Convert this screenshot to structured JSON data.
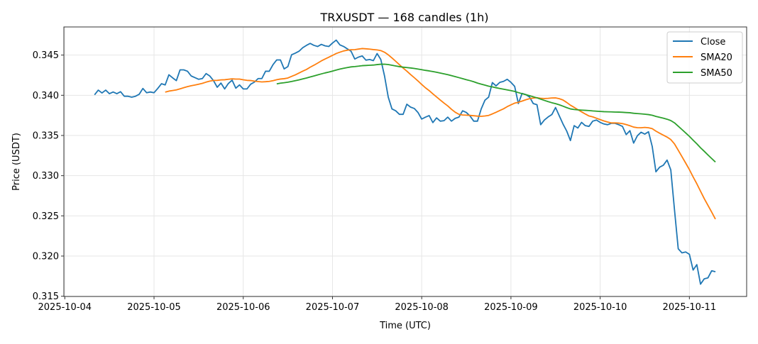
{
  "chart_data": {
    "type": "line",
    "title": "TRXUSDT — 168 candles (1h)",
    "xlabel": "Time (UTC)",
    "ylabel": "Price (USDT)",
    "x_start": "2025-10-04 08:00",
    "x_interval_hours": 1,
    "x_origin": "2025-10-04 00:00",
    "xlim_hours_from_origin": [
      -0.25,
      183.4
    ],
    "ylim": [
      0.31497,
      0.3485
    ],
    "grid": true,
    "legend_position": "top-right",
    "x_ticks": [
      "2025-10-04",
      "2025-10-05",
      "2025-10-06",
      "2025-10-07",
      "2025-10-08",
      "2025-10-09",
      "2025-10-10",
      "2025-10-11"
    ],
    "y_ticks": [
      "0.315",
      "0.320",
      "0.325",
      "0.330",
      "0.335",
      "0.340",
      "0.345"
    ],
    "series": [
      {
        "name": "Close",
        "color": "#1f77b4",
        "values": [
          0.34006,
          0.34064,
          0.34029,
          0.34064,
          0.3402,
          0.34041,
          0.3402,
          0.34044,
          0.33988,
          0.33988,
          0.33977,
          0.33988,
          0.34012,
          0.34085,
          0.34032,
          0.34041,
          0.34032,
          0.34085,
          0.34144,
          0.34129,
          0.34255,
          0.34217,
          0.34182,
          0.34316,
          0.34316,
          0.34299,
          0.3424,
          0.3422,
          0.34199,
          0.34208,
          0.3427,
          0.3424,
          0.34182,
          0.341,
          0.34152,
          0.34079,
          0.34147,
          0.34188,
          0.34088,
          0.34129,
          0.34079,
          0.34079,
          0.34138,
          0.34164,
          0.34208,
          0.34208,
          0.34299,
          0.34299,
          0.34381,
          0.3444,
          0.3444,
          0.34328,
          0.34357,
          0.34504,
          0.34524,
          0.34548,
          0.34592,
          0.34621,
          0.34645,
          0.34621,
          0.34607,
          0.34633,
          0.34615,
          0.34607,
          0.3465,
          0.34686,
          0.34627,
          0.34607,
          0.34577,
          0.34548,
          0.34451,
          0.34475,
          0.34489,
          0.34437,
          0.34445,
          0.34431,
          0.34519,
          0.34445,
          0.3424,
          0.33977,
          0.3383,
          0.33807,
          0.33763,
          0.33763,
          0.33889,
          0.33853,
          0.33836,
          0.33786,
          0.33704,
          0.33728,
          0.33748,
          0.3366,
          0.33719,
          0.33678,
          0.33684,
          0.33728,
          0.33678,
          0.33713,
          0.33728,
          0.33807,
          0.33786,
          0.33742,
          0.33678,
          0.33678,
          0.3383,
          0.33938,
          0.33977,
          0.34158,
          0.34117,
          0.34161,
          0.34173,
          0.34199,
          0.34161,
          0.34111,
          0.33897,
          0.34023,
          0.34009,
          0.33979,
          0.33897,
          0.33883,
          0.33634,
          0.33692,
          0.3373,
          0.3376,
          0.33848,
          0.33745,
          0.33643,
          0.33555,
          0.33437,
          0.33622,
          0.33593,
          0.33663,
          0.33622,
          0.33613,
          0.33678,
          0.33692,
          0.33663,
          0.33643,
          0.33634,
          0.33651,
          0.33651,
          0.33634,
          0.33613,
          0.33511,
          0.3356,
          0.33405,
          0.33496,
          0.3354,
          0.33517,
          0.33546,
          0.33364,
          0.33048,
          0.33106,
          0.3313,
          0.33194,
          0.33071,
          0.32572,
          0.3209,
          0.3204,
          0.32051,
          0.32022,
          0.31826,
          0.31893,
          0.3165,
          0.31717,
          0.31729,
          0.31817,
          0.31805
        ]
      },
      {
        "name": "SMA20",
        "color": "#ff7f0e",
        "window": 20,
        "source": "Close"
      },
      {
        "name": "SMA50",
        "color": "#2ca02c",
        "window": 50,
        "source": "Close"
      }
    ]
  }
}
